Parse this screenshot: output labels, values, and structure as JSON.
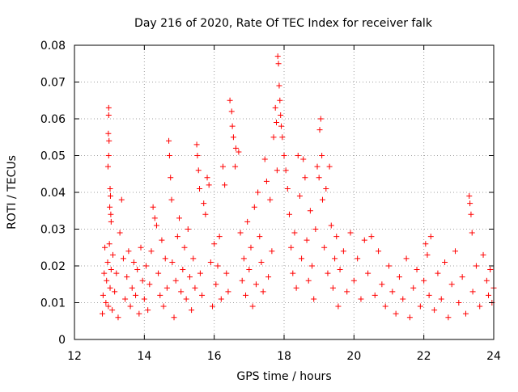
{
  "chart_data": {
    "type": "scatter",
    "title": "Day 216 of 2020, Rate Of TEC Index for receiver falk",
    "xlabel": "GPS time / hours",
    "ylabel": "ROTI / TECUs",
    "xlim": [
      12,
      24
    ],
    "ylim": [
      0,
      0.08
    ],
    "x_ticks": [
      12,
      14,
      16,
      18,
      20,
      22,
      24
    ],
    "x_tick_labels": [
      "12",
      "14",
      "16",
      "18",
      "20",
      "22",
      "24"
    ],
    "y_ticks": [
      0,
      0.01,
      0.02,
      0.03,
      0.04,
      0.05,
      0.06,
      0.07,
      0.08
    ],
    "y_tick_labels": [
      "0",
      "0.01",
      "0.02",
      "0.03",
      "0.04",
      "0.05",
      "0.06",
      "0.07",
      "0.08"
    ],
    "grid": true,
    "legend": "none",
    "marker": "+",
    "marker_color": "#ff0000",
    "series": [
      {
        "points": [
          [
            12.8,
            0.007
          ],
          [
            12.82,
            0.012
          ],
          [
            12.85,
            0.018
          ],
          [
            12.87,
            0.025
          ],
          [
            12.9,
            0.01
          ],
          [
            12.92,
            0.016
          ],
          [
            12.95,
            0.021
          ],
          [
            12.97,
            0.009
          ],
          [
            13.0,
            0.026
          ],
          [
            13.02,
            0.014
          ],
          [
            13.05,
            0.019
          ],
          [
            13.08,
            0.008
          ],
          [
            12.98,
            0.063
          ],
          [
            12.98,
            0.061
          ],
          [
            12.97,
            0.056
          ],
          [
            12.99,
            0.054
          ],
          [
            12.98,
            0.05
          ],
          [
            12.96,
            0.047
          ],
          [
            13.02,
            0.041
          ],
          [
            13.03,
            0.039
          ],
          [
            13.01,
            0.036
          ],
          [
            13.04,
            0.034
          ],
          [
            13.05,
            0.032
          ],
          [
            13.1,
            0.023
          ],
          [
            13.15,
            0.013
          ],
          [
            13.2,
            0.018
          ],
          [
            13.25,
            0.006
          ],
          [
            13.3,
            0.029
          ],
          [
            13.35,
            0.038
          ],
          [
            13.4,
            0.022
          ],
          [
            13.45,
            0.011
          ],
          [
            13.5,
            0.017
          ],
          [
            13.55,
            0.024
          ],
          [
            13.6,
            0.009
          ],
          [
            13.65,
            0.014
          ],
          [
            13.7,
            0.021
          ],
          [
            13.75,
            0.012
          ],
          [
            13.8,
            0.019
          ],
          [
            13.85,
            0.007
          ],
          [
            13.9,
            0.025
          ],
          [
            13.95,
            0.016
          ],
          [
            14.0,
            0.011
          ],
          [
            14.05,
            0.02
          ],
          [
            14.1,
            0.008
          ],
          [
            14.15,
            0.015
          ],
          [
            14.2,
            0.024
          ],
          [
            14.25,
            0.036
          ],
          [
            14.3,
            0.033
          ],
          [
            14.35,
            0.031
          ],
          [
            14.4,
            0.018
          ],
          [
            14.45,
            0.012
          ],
          [
            14.5,
            0.027
          ],
          [
            14.55,
            0.009
          ],
          [
            14.6,
            0.022
          ],
          [
            14.65,
            0.014
          ],
          [
            14.7,
            0.054
          ],
          [
            14.72,
            0.05
          ],
          [
            14.75,
            0.044
          ],
          [
            14.78,
            0.038
          ],
          [
            14.8,
            0.021
          ],
          [
            14.85,
            0.006
          ],
          [
            14.9,
            0.016
          ],
          [
            14.95,
            0.028
          ],
          [
            15.0,
            0.033
          ],
          [
            15.05,
            0.013
          ],
          [
            15.1,
            0.019
          ],
          [
            15.15,
            0.025
          ],
          [
            15.2,
            0.011
          ],
          [
            15.25,
            0.03
          ],
          [
            15.3,
            0.017
          ],
          [
            15.35,
            0.008
          ],
          [
            15.4,
            0.022
          ],
          [
            15.45,
            0.014
          ],
          [
            15.5,
            0.053
          ],
          [
            15.52,
            0.05
          ],
          [
            15.55,
            0.046
          ],
          [
            15.58,
            0.041
          ],
          [
            15.6,
            0.018
          ],
          [
            15.65,
            0.012
          ],
          [
            15.7,
            0.037
          ],
          [
            15.75,
            0.034
          ],
          [
            15.8,
            0.044
          ],
          [
            15.85,
            0.042
          ],
          [
            15.9,
            0.021
          ],
          [
            15.95,
            0.009
          ],
          [
            16.0,
            0.026
          ],
          [
            16.05,
            0.015
          ],
          [
            16.1,
            0.02
          ],
          [
            16.15,
            0.028
          ],
          [
            16.2,
            0.011
          ],
          [
            16.25,
            0.047
          ],
          [
            16.3,
            0.042
          ],
          [
            16.35,
            0.018
          ],
          [
            16.4,
            0.013
          ],
          [
            16.45,
            0.065
          ],
          [
            16.5,
            0.062
          ],
          [
            16.52,
            0.058
          ],
          [
            16.55,
            0.055
          ],
          [
            16.6,
            0.047
          ],
          [
            16.62,
            0.052
          ],
          [
            16.7,
            0.051
          ],
          [
            16.75,
            0.029
          ],
          [
            16.8,
            0.016
          ],
          [
            16.85,
            0.022
          ],
          [
            16.9,
            0.012
          ],
          [
            16.95,
            0.032
          ],
          [
            17.0,
            0.019
          ],
          [
            17.05,
            0.025
          ],
          [
            17.1,
            0.009
          ],
          [
            17.15,
            0.036
          ],
          [
            17.2,
            0.015
          ],
          [
            17.25,
            0.04
          ],
          [
            17.3,
            0.028
          ],
          [
            17.35,
            0.021
          ],
          [
            17.4,
            0.013
          ],
          [
            17.45,
            0.049
          ],
          [
            17.5,
            0.043
          ],
          [
            17.55,
            0.017
          ],
          [
            17.6,
            0.038
          ],
          [
            17.65,
            0.024
          ],
          [
            17.7,
            0.055
          ],
          [
            17.75,
            0.063
          ],
          [
            17.78,
            0.059
          ],
          [
            17.8,
            0.046
          ],
          [
            17.82,
            0.077
          ],
          [
            17.84,
            0.075
          ],
          [
            17.86,
            0.069
          ],
          [
            17.88,
            0.065
          ],
          [
            17.9,
            0.061
          ],
          [
            17.92,
            0.058
          ],
          [
            17.95,
            0.055
          ],
          [
            18.0,
            0.05
          ],
          [
            18.05,
            0.046
          ],
          [
            18.1,
            0.041
          ],
          [
            18.15,
            0.034
          ],
          [
            18.2,
            0.025
          ],
          [
            18.25,
            0.018
          ],
          [
            18.3,
            0.029
          ],
          [
            18.35,
            0.014
          ],
          [
            18.4,
            0.05
          ],
          [
            18.45,
            0.039
          ],
          [
            18.5,
            0.022
          ],
          [
            18.55,
            0.049
          ],
          [
            18.6,
            0.044
          ],
          [
            18.65,
            0.027
          ],
          [
            18.7,
            0.016
          ],
          [
            18.75,
            0.035
          ],
          [
            18.8,
            0.02
          ],
          [
            18.85,
            0.011
          ],
          [
            18.9,
            0.03
          ],
          [
            18.95,
            0.047
          ],
          [
            19.0,
            0.044
          ],
          [
            19.02,
            0.057
          ],
          [
            19.05,
            0.06
          ],
          [
            19.08,
            0.05
          ],
          [
            19.1,
            0.038
          ],
          [
            19.15,
            0.025
          ],
          [
            19.2,
            0.041
          ],
          [
            19.25,
            0.018
          ],
          [
            19.3,
            0.047
          ],
          [
            19.35,
            0.031
          ],
          [
            19.4,
            0.014
          ],
          [
            19.45,
            0.022
          ],
          [
            19.5,
            0.028
          ],
          [
            19.55,
            0.009
          ],
          [
            19.6,
            0.019
          ],
          [
            19.7,
            0.024
          ],
          [
            19.8,
            0.013
          ],
          [
            19.9,
            0.029
          ],
          [
            20.0,
            0.016
          ],
          [
            20.1,
            0.022
          ],
          [
            20.2,
            0.011
          ],
          [
            20.3,
            0.027
          ],
          [
            20.4,
            0.018
          ],
          [
            20.5,
            0.028
          ],
          [
            20.6,
            0.012
          ],
          [
            20.7,
            0.024
          ],
          [
            20.8,
            0.015
          ],
          [
            20.9,
            0.009
          ],
          [
            21.0,
            0.02
          ],
          [
            21.1,
            0.013
          ],
          [
            21.2,
            0.007
          ],
          [
            21.3,
            0.017
          ],
          [
            21.4,
            0.011
          ],
          [
            21.5,
            0.022
          ],
          [
            21.6,
            0.006
          ],
          [
            21.7,
            0.014
          ],
          [
            21.8,
            0.019
          ],
          [
            21.9,
            0.009
          ],
          [
            22.0,
            0.016
          ],
          [
            22.05,
            0.026
          ],
          [
            22.1,
            0.023
          ],
          [
            22.15,
            0.012
          ],
          [
            22.2,
            0.028
          ],
          [
            22.3,
            0.008
          ],
          [
            22.4,
            0.018
          ],
          [
            22.5,
            0.011
          ],
          [
            22.6,
            0.021
          ],
          [
            22.7,
            0.006
          ],
          [
            22.8,
            0.015
          ],
          [
            22.9,
            0.024
          ],
          [
            23.0,
            0.01
          ],
          [
            23.1,
            0.017
          ],
          [
            23.2,
            0.007
          ],
          [
            23.3,
            0.039
          ],
          [
            23.32,
            0.037
          ],
          [
            23.35,
            0.034
          ],
          [
            23.38,
            0.029
          ],
          [
            23.4,
            0.013
          ],
          [
            23.5,
            0.02
          ],
          [
            23.6,
            0.009
          ],
          [
            23.7,
            0.023
          ],
          [
            23.8,
            0.016
          ],
          [
            23.85,
            0.012
          ],
          [
            23.9,
            0.019
          ],
          [
            23.95,
            0.01
          ],
          [
            24.0,
            0.014
          ]
        ]
      }
    ]
  }
}
